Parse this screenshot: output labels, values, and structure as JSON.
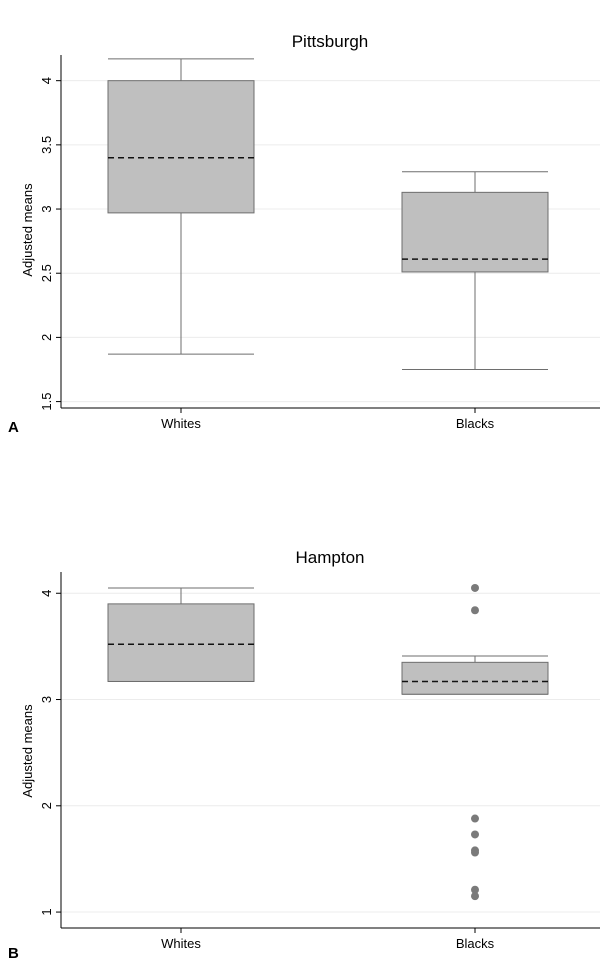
{
  "chart_data": [
    {
      "type": "box",
      "panel_label": "A",
      "title": "Pittsburgh",
      "ylabel": "Adjusted means",
      "ylim": [
        1.45,
        4.2
      ],
      "yticks": [
        {
          "value": 1.5,
          "label": "1.5"
        },
        {
          "value": 2,
          "label": "2"
        },
        {
          "value": 2.5,
          "label": "2.5"
        },
        {
          "value": 3,
          "label": "3"
        },
        {
          "value": 3.5,
          "label": "3.5"
        },
        {
          "value": 4,
          "label": "4"
        }
      ],
      "categories": [
        "Whites",
        "Blacks"
      ],
      "boxes": [
        {
          "category": "Whites",
          "whisker_low": 1.87,
          "q1": 2.97,
          "median": 3.4,
          "q3": 4.0,
          "whisker_high": 4.17,
          "outliers": []
        },
        {
          "category": "Blacks",
          "whisker_low": 1.75,
          "q1": 2.51,
          "median": 2.61,
          "q3": 3.13,
          "whisker_high": 3.29,
          "outliers": []
        }
      ],
      "grid": true
    },
    {
      "type": "box",
      "panel_label": "B",
      "title": "Hampton",
      "ylabel": "Adjusted means",
      "ylim": [
        0.85,
        4.2
      ],
      "yticks": [
        {
          "value": 1,
          "label": "1"
        },
        {
          "value": 2,
          "label": "2"
        },
        {
          "value": 3,
          "label": "3"
        },
        {
          "value": 4,
          "label": "4"
        }
      ],
      "categories": [
        "Whites",
        "Blacks"
      ],
      "boxes": [
        {
          "category": "Whites",
          "whisker_low": 3.17,
          "q1": 3.17,
          "median": 3.52,
          "q3": 3.9,
          "whisker_high": 4.05,
          "outliers": []
        },
        {
          "category": "Blacks",
          "whisker_low": 3.05,
          "q1": 3.05,
          "median": 3.17,
          "q3": 3.35,
          "whisker_high": 3.41,
          "outliers": [
            4.05,
            3.84,
            1.88,
            1.73,
            1.58,
            1.56,
            1.21,
            1.15
          ]
        }
      ],
      "grid": true
    }
  ],
  "colors": {
    "box_fill": "#bfbfbf",
    "box_stroke": "#6e6e6e",
    "whisker": "#6e6e6e",
    "median": "#111111",
    "outlier": "#7a7a7a",
    "grid": "#ececec",
    "axis": "#000000"
  }
}
